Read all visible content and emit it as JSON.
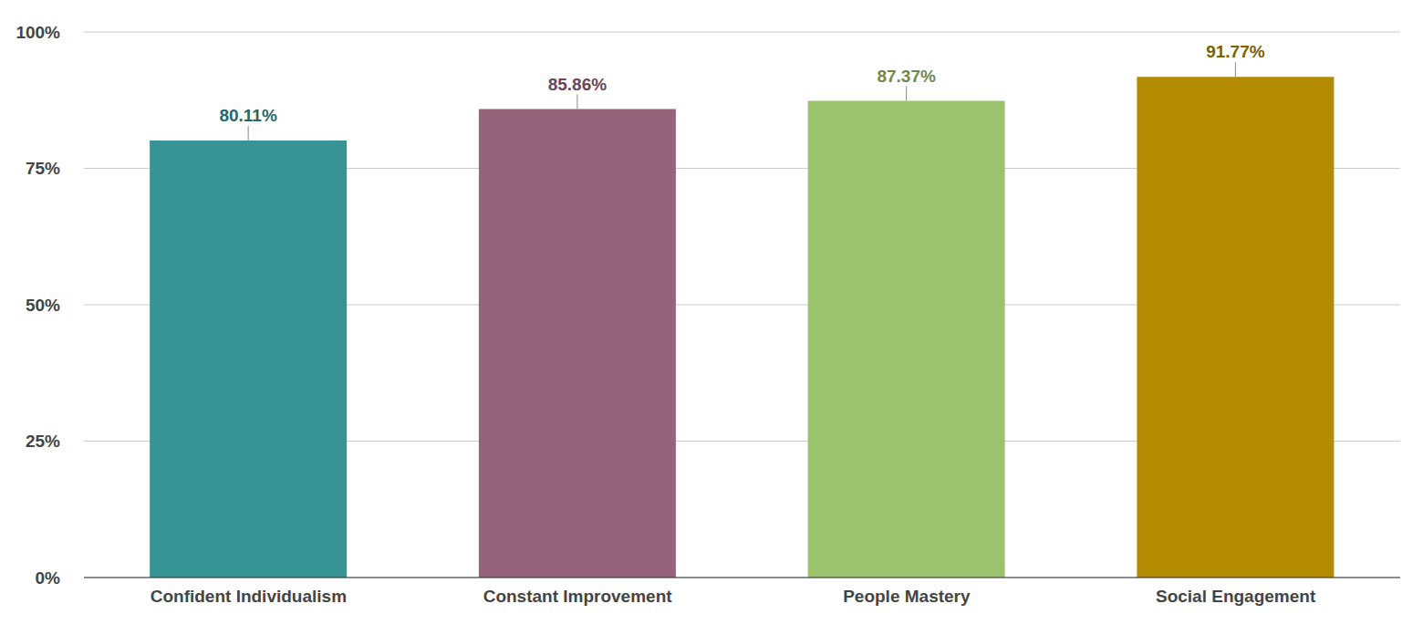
{
  "chart_data": {
    "type": "bar",
    "categories": [
      "Confident Individualism",
      "Constant Improvement",
      "People Mastery",
      "Social Engagement"
    ],
    "values": [
      80.11,
      85.86,
      87.37,
      91.77
    ],
    "value_labels": [
      "80.11%",
      "85.86%",
      "87.37%",
      "91.77%"
    ],
    "colors": [
      "#379394",
      "#95647c",
      "#9bc36e",
      "#b38b00"
    ],
    "ylim": [
      0,
      100
    ],
    "yticks": [
      {
        "value": 0,
        "label": "0%"
      },
      {
        "value": 25,
        "label": "25%"
      },
      {
        "value": 50,
        "label": "50%"
      },
      {
        "value": 75,
        "label": "75%"
      },
      {
        "value": 100,
        "label": "100%"
      }
    ],
    "grid": true,
    "data_labels": true
  }
}
